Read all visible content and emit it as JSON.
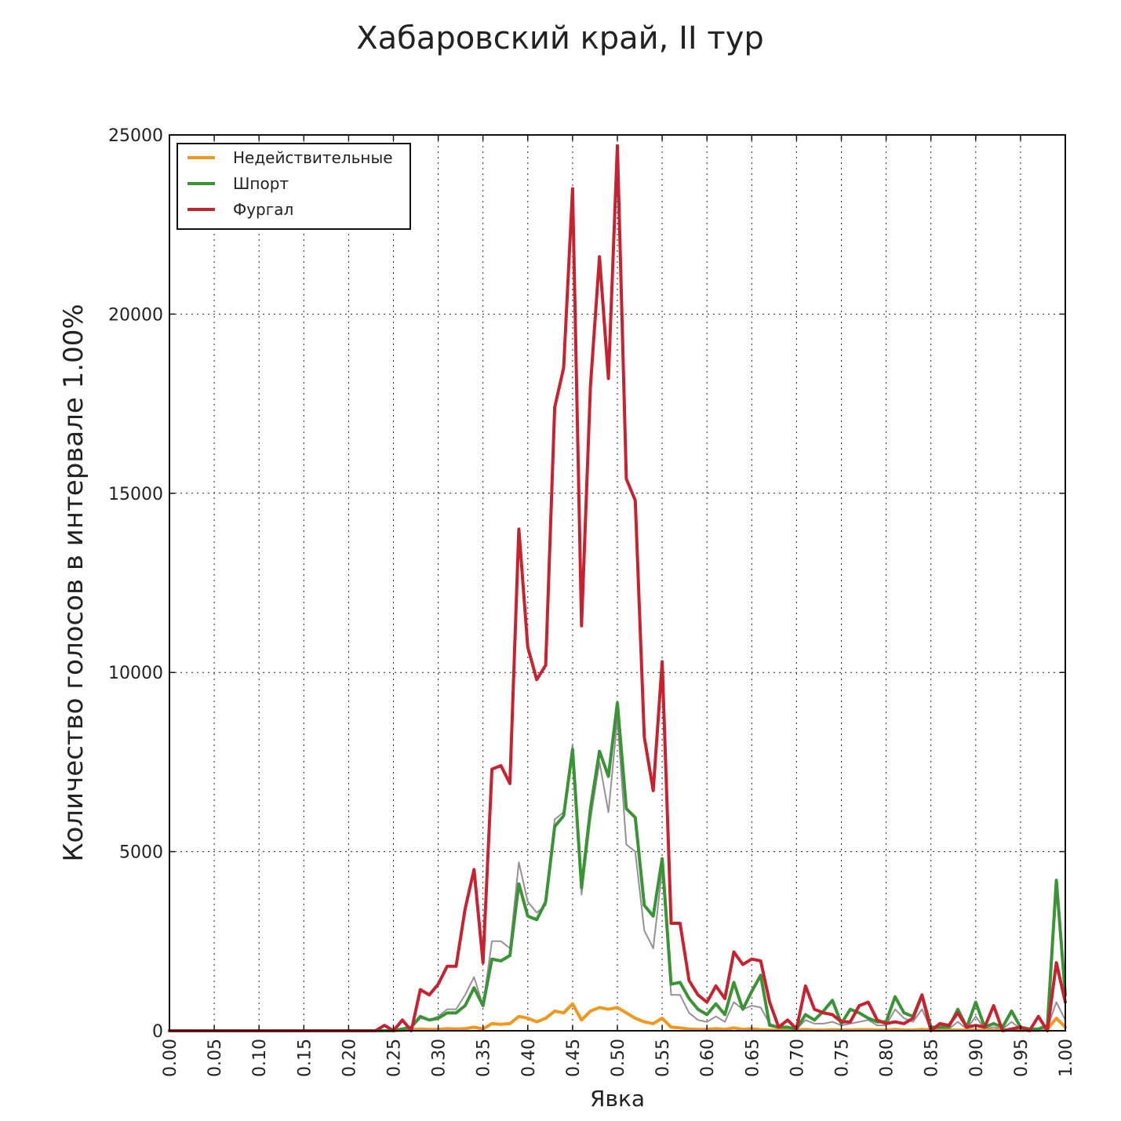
{
  "chart_data": {
    "type": "line",
    "title": "Хабаровский край, II тур",
    "xlabel": "Явка",
    "ylabel": "Количество голосов в интервале 1.00%",
    "xlim": [
      0,
      1
    ],
    "ylim": [
      0,
      25000
    ],
    "xticks": [
      "0.00",
      "0.05",
      "0.10",
      "0.15",
      "0.20",
      "0.25",
      "0.30",
      "0.35",
      "0.40",
      "0.45",
      "0.50",
      "0.55",
      "0.60",
      "0.65",
      "0.70",
      "0.75",
      "0.80",
      "0.85",
      "0.90",
      "0.95",
      "1.00"
    ],
    "yticks": [
      "0",
      "5000",
      "10000",
      "15000",
      "20000",
      "25000"
    ],
    "grid": true,
    "legend_position": "top-left",
    "x": [
      0.0,
      0.01,
      0.02,
      0.03,
      0.04,
      0.05,
      0.06,
      0.07,
      0.08,
      0.09,
      0.1,
      0.11,
      0.12,
      0.13,
      0.14,
      0.15,
      0.16,
      0.17,
      0.18,
      0.19,
      0.2,
      0.21,
      0.22,
      0.23,
      0.24,
      0.25,
      0.26,
      0.27,
      0.28,
      0.29,
      0.3,
      0.31,
      0.32,
      0.33,
      0.34,
      0.35,
      0.36,
      0.37,
      0.38,
      0.39,
      0.4,
      0.41,
      0.42,
      0.43,
      0.44,
      0.45,
      0.46,
      0.47,
      0.48,
      0.49,
      0.5,
      0.51,
      0.52,
      0.53,
      0.54,
      0.55,
      0.56,
      0.57,
      0.58,
      0.59,
      0.6,
      0.61,
      0.62,
      0.63,
      0.64,
      0.65,
      0.66,
      0.67,
      0.68,
      0.69,
      0.7,
      0.71,
      0.72,
      0.73,
      0.74,
      0.75,
      0.76,
      0.77,
      0.78,
      0.79,
      0.8,
      0.81,
      0.82,
      0.83,
      0.84,
      0.85,
      0.86,
      0.87,
      0.88,
      0.89,
      0.9,
      0.91,
      0.92,
      0.93,
      0.94,
      0.95,
      0.96,
      0.97,
      0.98,
      0.99,
      1.0
    ],
    "series": [
      {
        "name": "Недействительные",
        "color": "#f0971d",
        "values": [
          0,
          0,
          0,
          0,
          0,
          0,
          0,
          0,
          0,
          0,
          0,
          0,
          0,
          0,
          0,
          0,
          0,
          0,
          0,
          0,
          0,
          0,
          0,
          0,
          0,
          0,
          10,
          30,
          50,
          40,
          40,
          60,
          50,
          60,
          100,
          50,
          200,
          180,
          200,
          400,
          350,
          250,
          350,
          550,
          500,
          750,
          300,
          550,
          650,
          600,
          650,
          500,
          350,
          250,
          200,
          350,
          100,
          80,
          50,
          40,
          40,
          60,
          40,
          80,
          40,
          60,
          30,
          20,
          20,
          20,
          20,
          40,
          20,
          20,
          30,
          20,
          20,
          30,
          30,
          20,
          20,
          40,
          20,
          20,
          40,
          20,
          10,
          20,
          20,
          20,
          20,
          20,
          20,
          20,
          20,
          10,
          10,
          10,
          50,
          350,
          100
        ]
      },
      {
        "name": "Шпорт",
        "color": "#3a9334",
        "values": [
          0,
          0,
          0,
          0,
          0,
          0,
          0,
          0,
          0,
          0,
          0,
          0,
          0,
          0,
          0,
          0,
          0,
          0,
          0,
          0,
          0,
          0,
          0,
          0,
          0,
          0,
          50,
          100,
          400,
          300,
          350,
          500,
          500,
          700,
          1200,
          700,
          2000,
          1950,
          2100,
          4100,
          3200,
          3100,
          3600,
          5700,
          6000,
          7850,
          4000,
          6200,
          7800,
          7100,
          9150,
          6200,
          5950,
          3500,
          3200,
          4800,
          1300,
          1350,
          900,
          600,
          450,
          750,
          450,
          1350,
          600,
          1100,
          1550,
          150,
          100,
          100,
          50,
          450,
          300,
          550,
          850,
          200,
          600,
          500,
          350,
          250,
          250,
          950,
          500,
          400,
          1000,
          100,
          100,
          100,
          600,
          100,
          800,
          100,
          200,
          100,
          550,
          100,
          50,
          50,
          150,
          4200,
          1000
        ]
      },
      {
        "name": "Фургал",
        "color": "#c82230",
        "values": [
          0,
          0,
          0,
          0,
          0,
          0,
          0,
          0,
          0,
          0,
          0,
          0,
          0,
          0,
          0,
          0,
          0,
          0,
          0,
          0,
          0,
          0,
          0,
          0,
          150,
          0,
          300,
          0,
          1150,
          1000,
          1300,
          1800,
          1800,
          3400,
          4500,
          1900,
          7300,
          7400,
          6900,
          14000,
          10700,
          9800,
          10200,
          17400,
          18500,
          23500,
          11300,
          18000,
          21600,
          18200,
          24700,
          15400,
          14800,
          8200,
          6700,
          10300,
          3000,
          3000,
          1400,
          1000,
          800,
          1250,
          900,
          2200,
          1850,
          2000,
          1950,
          800,
          100,
          300,
          50,
          1250,
          600,
          500,
          450,
          250,
          250,
          700,
          800,
          300,
          200,
          250,
          200,
          350,
          1000,
          0,
          200,
          150,
          500,
          100,
          150,
          100,
          700,
          0,
          50,
          100,
          0,
          400,
          0,
          1900,
          800
        ]
      },
      {
        "name": "",
        "color": "#9a8e99",
        "values": [
          0,
          0,
          0,
          0,
          0,
          0,
          0,
          0,
          0,
          0,
          0,
          0,
          0,
          0,
          0,
          0,
          0,
          0,
          0,
          0,
          0,
          0,
          0,
          0,
          0,
          0,
          50,
          80,
          350,
          300,
          400,
          600,
          600,
          1000,
          1500,
          700,
          2500,
          2500,
          2300,
          4700,
          3600,
          3300,
          3500,
          5900,
          6100,
          8000,
          3800,
          5900,
          7500,
          6100,
          8700,
          5200,
          5000,
          2800,
          2300,
          4500,
          1000,
          1000,
          500,
          300,
          250,
          400,
          250,
          800,
          600,
          700,
          650,
          200,
          100,
          100,
          50,
          300,
          200,
          200,
          250,
          150,
          200,
          250,
          300,
          150,
          150,
          600,
          350,
          250,
          600,
          50,
          50,
          50,
          250,
          50,
          400,
          50,
          100,
          50,
          250,
          50,
          30,
          30,
          80,
          800,
          300
        ]
      }
    ]
  }
}
